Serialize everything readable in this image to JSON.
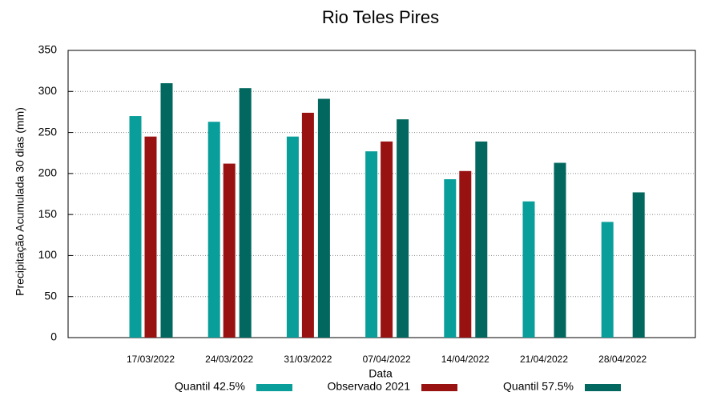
{
  "chart_data": {
    "type": "bar",
    "title": "Rio Teles Pires",
    "xlabel": "Data",
    "ylabel": "Precipitação Acumulada 30 dias (mm)",
    "categories": [
      "17/03/2022",
      "24/03/2022",
      "31/03/2022",
      "07/04/2022",
      "14/04/2022",
      "21/04/2022",
      "28/04/2022"
    ],
    "series": [
      {
        "name": "Quantil 42.5%",
        "color": "#0a9e9b",
        "values": [
          270,
          263,
          245,
          227,
          193,
          166,
          141
        ]
      },
      {
        "name": "Observado 2021",
        "color": "#981212",
        "values": [
          245,
          212,
          274,
          239,
          203,
          null,
          null
        ]
      },
      {
        "name": "Quantil 57.5%",
        "color": "#02685f",
        "values": [
          310,
          304,
          291,
          266,
          239,
          213,
          177
        ]
      }
    ],
    "ylim": [
      0,
      350
    ],
    "yticks": [
      0,
      50,
      100,
      150,
      200,
      250,
      300,
      350
    ],
    "grid": true,
    "legend": "bottom"
  }
}
